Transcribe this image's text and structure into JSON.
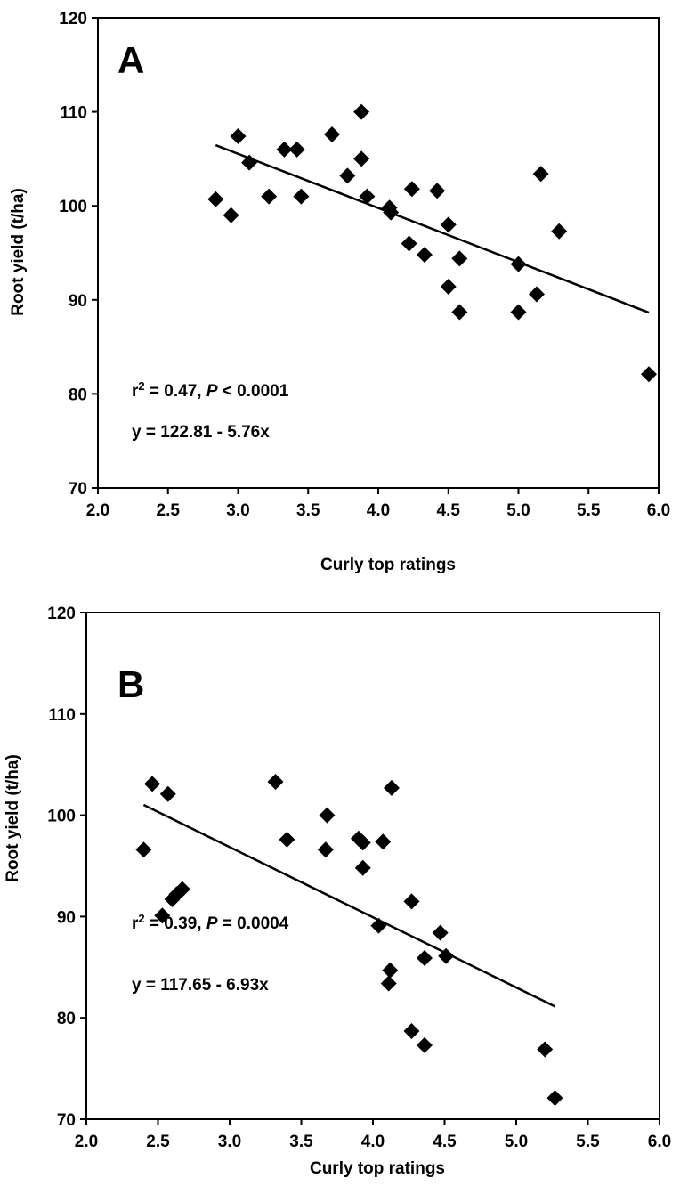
{
  "chart_data": [
    {
      "type": "scatter",
      "panel_label": "A",
      "xlabel": "Curly top ratings",
      "ylabel": "Root yield (t/ha)",
      "xlim": [
        2.0,
        6.0
      ],
      "ylim": [
        70,
        120
      ],
      "xticks": [
        "2.0",
        "2.5",
        "3.0",
        "3.5",
        "4.0",
        "4.5",
        "5.0",
        "5.5",
        "6.0"
      ],
      "yticks": [
        "70",
        "80",
        "90",
        "100",
        "110",
        "120"
      ],
      "grid": false,
      "marker": "diamond",
      "marker_color": "#000000",
      "points": [
        [
          2.84,
          100.7
        ],
        [
          2.95,
          99.0
        ],
        [
          3.0,
          107.4
        ],
        [
          3.08,
          104.6
        ],
        [
          3.22,
          101.0
        ],
        [
          3.33,
          106.0
        ],
        [
          3.42,
          106.0
        ],
        [
          3.45,
          101.0
        ],
        [
          3.67,
          107.6
        ],
        [
          3.78,
          103.2
        ],
        [
          3.88,
          110.0
        ],
        [
          3.88,
          105.0
        ],
        [
          3.92,
          101.0
        ],
        [
          4.08,
          99.8
        ],
        [
          4.09,
          99.3
        ],
        [
          4.22,
          96.0
        ],
        [
          4.24,
          101.8
        ],
        [
          4.33,
          94.8
        ],
        [
          4.42,
          101.6
        ],
        [
          4.5,
          98.0
        ],
        [
          4.5,
          91.4
        ],
        [
          4.58,
          94.4
        ],
        [
          4.58,
          88.7
        ],
        [
          5.0,
          93.8
        ],
        [
          5.0,
          88.7
        ],
        [
          5.13,
          90.6
        ],
        [
          5.16,
          103.4
        ],
        [
          5.29,
          97.3
        ],
        [
          5.93,
          82.1
        ]
      ],
      "fit": {
        "intercept": 122.81,
        "slope": -5.76,
        "x_range": [
          2.84,
          5.93
        ]
      },
      "annotations": {
        "r2_prefix": "r",
        "r2_sup": "2",
        "r2_mid": " = 0.47, ",
        "p_italic": "P",
        "p_rest": " < 0.0001",
        "equation": "y = 122.81 - 5.76x"
      }
    },
    {
      "type": "scatter",
      "panel_label": "B",
      "xlabel": "Curly top ratings",
      "ylabel": "Root yield (t/ha)",
      "xlim": [
        2.0,
        6.0
      ],
      "ylim": [
        70,
        120
      ],
      "xticks": [
        "2.0",
        "2.5",
        "3.0",
        "3.5",
        "4.0",
        "4.5",
        "5.0",
        "5.5",
        "6.0"
      ],
      "yticks": [
        "70",
        "80",
        "90",
        "100",
        "110",
        "120"
      ],
      "grid": false,
      "marker": "diamond",
      "marker_color": "#000000",
      "points": [
        [
          2.4,
          96.6
        ],
        [
          2.46,
          103.1
        ],
        [
          2.53,
          90.1
        ],
        [
          2.57,
          102.1
        ],
        [
          2.6,
          91.7
        ],
        [
          2.63,
          92.2
        ],
        [
          2.67,
          92.7
        ],
        [
          3.32,
          103.3
        ],
        [
          3.4,
          97.6
        ],
        [
          3.67,
          96.6
        ],
        [
          3.68,
          100.0
        ],
        [
          3.9,
          97.7
        ],
        [
          3.93,
          97.3
        ],
        [
          3.93,
          94.8
        ],
        [
          4.04,
          89.1
        ],
        [
          4.07,
          97.4
        ],
        [
          4.11,
          83.4
        ],
        [
          4.12,
          84.7
        ],
        [
          4.13,
          102.7
        ],
        [
          4.27,
          91.5
        ],
        [
          4.27,
          78.7
        ],
        [
          4.36,
          77.3
        ],
        [
          4.36,
          85.9
        ],
        [
          4.47,
          88.4
        ],
        [
          4.51,
          86.1
        ],
        [
          5.2,
          76.9
        ],
        [
          5.27,
          72.1
        ]
      ],
      "fit": {
        "intercept": 117.65,
        "slope": -6.93,
        "x_range": [
          2.4,
          5.27
        ]
      },
      "annotations": {
        "r2_prefix": "r",
        "r2_sup": "2",
        "r2_mid": " = 0.39, ",
        "p_italic": "P",
        "p_rest": " = 0.0004",
        "equation": "y = 117.65 - 6.93x"
      }
    }
  ]
}
